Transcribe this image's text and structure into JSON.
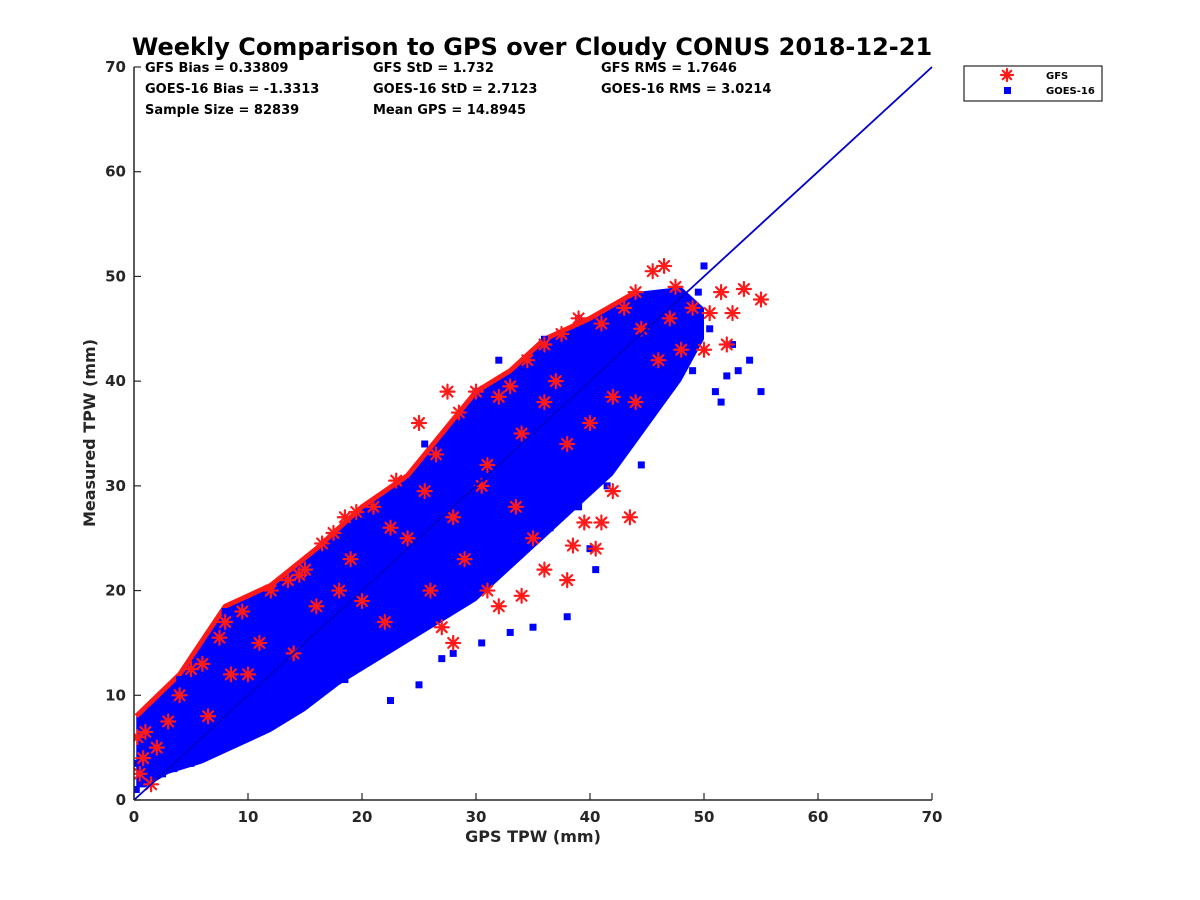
{
  "chart_data": {
    "type": "scatter",
    "title": "Weekly Comparison to GPS over Cloudy CONUS 2018-12-21",
    "xlabel": "GPS TPW (mm)",
    "ylabel": "Measured TPW (mm)",
    "xlim": [
      0,
      70
    ],
    "ylim": [
      0,
      70
    ],
    "xticks": [
      "0",
      "10",
      "20",
      "30",
      "40",
      "50",
      "60",
      "70"
    ],
    "yticks": [
      "0",
      "10",
      "20",
      "30",
      "40",
      "50",
      "60",
      "70"
    ],
    "grid": false,
    "legend_position": "outside-top-right",
    "stats": [
      [
        "GFS Bias = 0.33809",
        "GFS StD = 1.732",
        "GFS RMS = 1.7646"
      ],
      [
        "GOES-16 Bias = -1.3313",
        "GOES-16 StD = 2.7123",
        "GOES-16 RMS = 3.0214"
      ],
      [
        "Sample Size = 82839",
        "Mean GPS = 14.8945"
      ]
    ],
    "reference_line": {
      "x": [
        0,
        70
      ],
      "y": [
        0,
        70
      ],
      "color": "#0000cc"
    },
    "series": [
      {
        "name": "GFS",
        "marker": "asterisk",
        "color": "#ff1a1a",
        "points": [
          [
            0.3,
            6.0
          ],
          [
            1.0,
            6.5
          ],
          [
            4.0,
            10.0
          ],
          [
            5.0,
            12.5
          ],
          [
            6.0,
            13.0
          ],
          [
            7.5,
            15.5
          ],
          [
            8.0,
            17.0
          ],
          [
            9.5,
            18.0
          ],
          [
            12.0,
            20.0
          ],
          [
            13.5,
            21.0
          ],
          [
            14.5,
            21.5
          ],
          [
            15.0,
            22.0
          ],
          [
            16.5,
            24.5
          ],
          [
            17.5,
            25.5
          ],
          [
            18.5,
            27.0
          ],
          [
            19.5,
            27.5
          ],
          [
            21.0,
            28.0
          ],
          [
            23.0,
            30.5
          ],
          [
            25.0,
            36.0
          ],
          [
            26.5,
            33.0
          ],
          [
            27.5,
            39.0
          ],
          [
            28.5,
            37.0
          ],
          [
            30.0,
            39.0
          ],
          [
            32.0,
            38.5
          ],
          [
            33.0,
            39.5
          ],
          [
            34.5,
            42.0
          ],
          [
            36.0,
            43.5
          ],
          [
            37.5,
            44.5
          ],
          [
            39.0,
            46.0
          ],
          [
            41.0,
            45.5
          ],
          [
            43.0,
            47.0
          ],
          [
            44.0,
            48.5
          ],
          [
            45.5,
            50.5
          ],
          [
            46.5,
            51.0
          ],
          [
            47.5,
            49.0
          ],
          [
            49.0,
            47.0
          ],
          [
            50.5,
            46.5
          ],
          [
            51.5,
            48.5
          ],
          [
            52.5,
            46.5
          ],
          [
            53.5,
            48.8
          ],
          [
            55.0,
            47.8
          ],
          [
            52.0,
            43.5
          ],
          [
            50.0,
            43.0
          ],
          [
            48.0,
            43.0
          ],
          [
            44.0,
            38.0
          ],
          [
            42.0,
            29.5
          ],
          [
            43.5,
            27.0
          ],
          [
            40.5,
            24.0
          ],
          [
            39.5,
            26.5
          ],
          [
            38.0,
            21.0
          ],
          [
            36.0,
            22.0
          ],
          [
            34.0,
            19.5
          ],
          [
            32.0,
            18.5
          ],
          [
            31.0,
            20.0
          ],
          [
            28.0,
            15.0
          ],
          [
            27.0,
            16.5
          ],
          [
            35.0,
            25.0
          ],
          [
            38.5,
            24.3
          ],
          [
            41.0,
            26.5
          ],
          [
            26.0,
            20.0
          ],
          [
            22.0,
            17.0
          ],
          [
            29.0,
            23.0
          ],
          [
            33.5,
            28.0
          ],
          [
            40.0,
            36.0
          ],
          [
            46.0,
            42.0
          ],
          [
            10.0,
            12.0
          ],
          [
            14.0,
            14.0
          ],
          [
            18.0,
            20.0
          ],
          [
            20.0,
            19.0
          ],
          [
            24.0,
            25.0
          ],
          [
            28.0,
            27.0
          ],
          [
            31.0,
            32.0
          ],
          [
            36.0,
            38.0
          ],
          [
            38.0,
            34.0
          ],
          [
            42.0,
            38.5
          ],
          [
            44.5,
            45.0
          ],
          [
            47.0,
            46.0
          ],
          [
            3.0,
            7.5
          ],
          [
            2.0,
            5.0
          ],
          [
            1.5,
            1.5
          ],
          [
            0.5,
            2.5
          ],
          [
            0.8,
            4.0
          ],
          [
            6.5,
            8.0
          ],
          [
            8.5,
            12.0
          ],
          [
            11.0,
            15.0
          ],
          [
            16.0,
            18.5
          ],
          [
            19.0,
            23.0
          ],
          [
            22.5,
            26.0
          ],
          [
            25.5,
            29.5
          ],
          [
            30.5,
            30.0
          ],
          [
            34.0,
            35.0
          ],
          [
            37.0,
            40.0
          ]
        ]
      },
      {
        "name": "GOES-16",
        "marker": "square",
        "color": "#0000ff",
        "points": [
          [
            0.2,
            1.0
          ],
          [
            0.3,
            3.5
          ],
          [
            0.8,
            6.0
          ],
          [
            1.0,
            2.0
          ],
          [
            1.5,
            8.5
          ],
          [
            2.0,
            4.0
          ],
          [
            3.0,
            5.0
          ],
          [
            4.0,
            11.5
          ],
          [
            5.0,
            6.0
          ],
          [
            6.0,
            13.0
          ],
          [
            7.0,
            8.0
          ],
          [
            8.0,
            18.0
          ],
          [
            9.0,
            10.0
          ],
          [
            10.0,
            18.5
          ],
          [
            11.0,
            12.0
          ],
          [
            12.5,
            20.0
          ],
          [
            14.0,
            13.5
          ],
          [
            15.5,
            22.0
          ],
          [
            17.0,
            15.5
          ],
          [
            18.0,
            25.0
          ],
          [
            19.0,
            17.0
          ],
          [
            20.5,
            27.0
          ],
          [
            22.0,
            19.0
          ],
          [
            23.0,
            28.5
          ],
          [
            24.0,
            21.0
          ],
          [
            25.5,
            34.0
          ],
          [
            26.5,
            24.0
          ],
          [
            27.5,
            33.0
          ],
          [
            28.0,
            14.0
          ],
          [
            29.0,
            25.0
          ],
          [
            30.0,
            39.0
          ],
          [
            31.0,
            28.5
          ],
          [
            32.0,
            42.0
          ],
          [
            33.0,
            30.0
          ],
          [
            34.0,
            39.0
          ],
          [
            35.0,
            31.0
          ],
          [
            36.0,
            44.0
          ],
          [
            37.0,
            33.0
          ],
          [
            38.0,
            17.5
          ],
          [
            39.0,
            46.0
          ],
          [
            40.0,
            24.0
          ],
          [
            40.5,
            22.0
          ],
          [
            42.0,
            36.0
          ],
          [
            43.0,
            37.0
          ],
          [
            44.0,
            40.0
          ],
          [
            45.0,
            48.0
          ],
          [
            46.0,
            45.0
          ],
          [
            47.0,
            42.0
          ],
          [
            48.0,
            44.0
          ],
          [
            49.0,
            41.0
          ],
          [
            50.0,
            51.0
          ],
          [
            51.0,
            39.0
          ],
          [
            52.0,
            40.5
          ],
          [
            53.0,
            41.0
          ],
          [
            54.0,
            42.0
          ],
          [
            55.0,
            39.0
          ],
          [
            51.5,
            38.0
          ],
          [
            27.0,
            13.5
          ],
          [
            25.0,
            11.0
          ],
          [
            22.5,
            9.5
          ],
          [
            30.5,
            15.0
          ],
          [
            33.0,
            16.0
          ],
          [
            35.0,
            16.5
          ],
          [
            20.0,
            17.0
          ],
          [
            16.0,
            12.0
          ],
          [
            12.0,
            8.0
          ],
          [
            9.0,
            5.5
          ],
          [
            6.0,
            4.0
          ],
          [
            3.5,
            3.0
          ],
          [
            13.0,
            16.0
          ],
          [
            18.0,
            21.0
          ],
          [
            21.0,
            23.0
          ],
          [
            23.5,
            26.0
          ],
          [
            26.0,
            28.0
          ],
          [
            28.5,
            31.0
          ],
          [
            31.5,
            34.0
          ],
          [
            34.5,
            36.0
          ],
          [
            37.5,
            38.0
          ],
          [
            40.0,
            41.0
          ],
          [
            43.5,
            44.0
          ],
          [
            46.5,
            46.0
          ],
          [
            49.5,
            48.5
          ],
          [
            50.5,
            45.0
          ],
          [
            52.5,
            43.5
          ],
          [
            44.5,
            32.0
          ],
          [
            41.5,
            30.0
          ],
          [
            39.0,
            28.0
          ],
          [
            36.5,
            26.0
          ],
          [
            32.5,
            23.0
          ],
          [
            29.5,
            21.0
          ],
          [
            27.0,
            19.5
          ],
          [
            24.5,
            17.0
          ],
          [
            21.5,
            14.0
          ],
          [
            18.5,
            11.5
          ],
          [
            15.5,
            10.0
          ],
          [
            12.5,
            7.5
          ],
          [
            10.0,
            6.0
          ],
          [
            7.5,
            5.0
          ],
          [
            5.0,
            3.5
          ],
          [
            2.5,
            2.5
          ],
          [
            4.5,
            7.5
          ],
          [
            7.0,
            11.0
          ],
          [
            9.5,
            13.5
          ],
          [
            11.5,
            16.5
          ],
          [
            14.5,
            18.0
          ],
          [
            16.5,
            20.5
          ],
          [
            19.5,
            22.5
          ],
          [
            22.0,
            25.5
          ],
          [
            24.0,
            28.0
          ],
          [
            26.0,
            30.5
          ],
          [
            28.0,
            33.0
          ],
          [
            30.0,
            35.0
          ],
          [
            33.0,
            37.5
          ],
          [
            35.5,
            40.0
          ],
          [
            38.5,
            42.5
          ],
          [
            41.0,
            44.5
          ],
          [
            44.0,
            46.5
          ]
        ]
      }
    ]
  }
}
